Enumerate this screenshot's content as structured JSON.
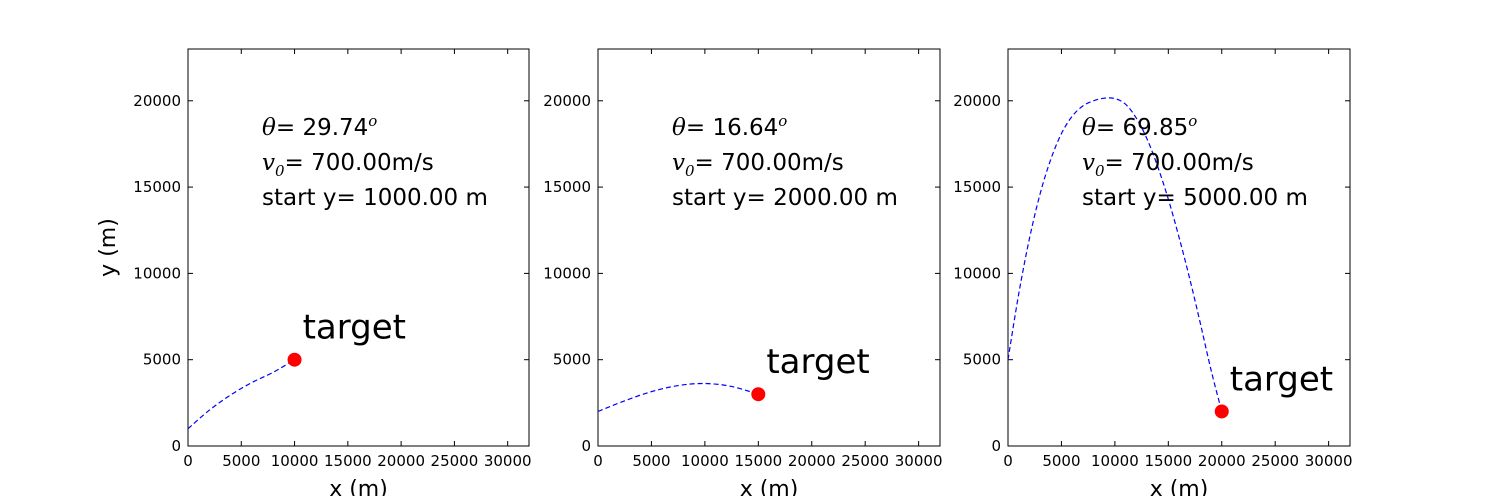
{
  "colors": {
    "trajectory": "#0000ff",
    "target": "#ff0000",
    "axes": "#000000",
    "background": "#ffffff"
  },
  "chart_data": [
    {
      "type": "line",
      "xlabel": "x  (m)",
      "ylabel": "y  (m)",
      "xlim": [
        0,
        32000
      ],
      "ylim": [
        0,
        23000
      ],
      "xticks": [
        "0",
        "5000",
        "10000",
        "15000",
        "20000",
        "25000",
        "30000"
      ],
      "yticks": [
        "0",
        "5000",
        "10000",
        "15000",
        "20000"
      ],
      "grid": false,
      "annotation": {
        "theta_symbol": "θ",
        "theta_text": "=  29.74",
        "theta_unit": "o",
        "v_symbol": "v",
        "v_sub": "0",
        "v_text": "=  700.00m/s",
        "start_text": "start y= 1000.00 m"
      },
      "target": {
        "label": "target",
        "x": 10000,
        "y": 5000
      },
      "trajectory": {
        "style": "dashed",
        "points": [
          [
            0,
            1000
          ],
          [
            2000,
            2075
          ],
          [
            4000,
            2956
          ],
          [
            6000,
            3677
          ],
          [
            8000,
            4270
          ],
          [
            10000,
            5000
          ]
        ]
      }
    },
    {
      "type": "line",
      "xlabel": "x  (m)",
      "ylabel": "",
      "xlim": [
        0,
        32000
      ],
      "ylim": [
        0,
        23000
      ],
      "xticks": [
        "0",
        "5000",
        "10000",
        "15000",
        "20000",
        "25000",
        "30000"
      ],
      "yticks": [
        "0",
        "5000",
        "10000",
        "15000",
        "20000"
      ],
      "grid": false,
      "annotation": {
        "theta_symbol": "θ",
        "theta_text": "=  16.64",
        "theta_unit": "o",
        "v_symbol": "v",
        "v_sub": "0",
        "v_text": "=  700.00m/s",
        "start_text": "start y= 2000.00 m"
      },
      "target": {
        "label": "target",
        "x": 15000,
        "y": 3000
      },
      "trajectory": {
        "style": "dashed",
        "points": [
          [
            0,
            2000
          ],
          [
            2500,
            2620
          ],
          [
            5000,
            3150
          ],
          [
            7500,
            3500
          ],
          [
            10000,
            3620
          ],
          [
            12500,
            3450
          ],
          [
            15000,
            3000
          ]
        ]
      }
    },
    {
      "type": "line",
      "xlabel": "x  (m)",
      "ylabel": "",
      "xlim": [
        0,
        32000
      ],
      "ylim": [
        0,
        23000
      ],
      "xticks": [
        "0",
        "5000",
        "10000",
        "15000",
        "20000",
        "25000",
        "30000"
      ],
      "yticks": [
        "0",
        "5000",
        "10000",
        "15000",
        "20000"
      ],
      "grid": false,
      "annotation": {
        "theta_symbol": "θ",
        "theta_text": "=  69.85",
        "theta_unit": "o",
        "v_symbol": "v",
        "v_sub": "0",
        "v_text": "=  700.00m/s",
        "start_text": "start y= 5000.00 m"
      },
      "target": {
        "label": "target",
        "x": 20000,
        "y": 2000
      },
      "trajectory": {
        "style": "dashed",
        "points": [
          [
            0,
            5000
          ],
          [
            1000,
            8800
          ],
          [
            2000,
            12000
          ],
          [
            3000,
            14600
          ],
          [
            4000,
            16600
          ],
          [
            5000,
            18100
          ],
          [
            6000,
            19100
          ],
          [
            7000,
            19700
          ],
          [
            8000,
            20000
          ],
          [
            9000,
            20150
          ],
          [
            10000,
            20130
          ],
          [
            11000,
            19800
          ],
          [
            12000,
            19000
          ],
          [
            13000,
            17800
          ],
          [
            14000,
            16200
          ],
          [
            15000,
            14300
          ],
          [
            16000,
            12100
          ],
          [
            17000,
            9700
          ],
          [
            18000,
            7100
          ],
          [
            19000,
            4400
          ],
          [
            20000,
            2000
          ]
        ]
      }
    }
  ]
}
